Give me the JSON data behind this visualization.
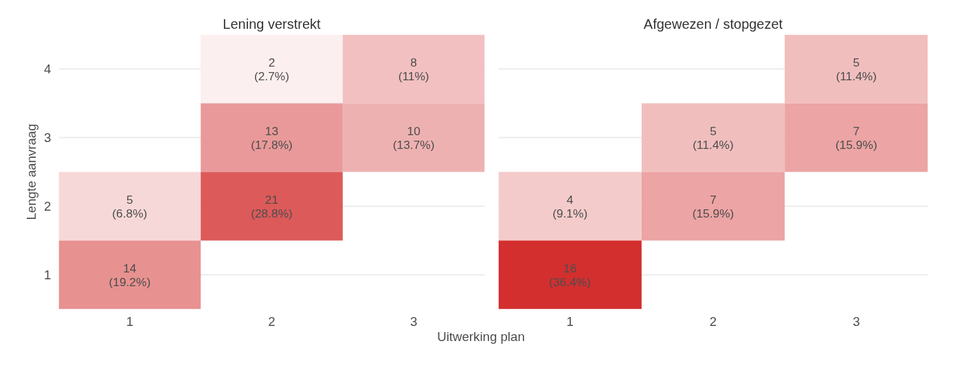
{
  "chart_data": [
    {
      "type": "heatmap",
      "title": "Lening verstrekt",
      "xlabel": "Uitwerking plan",
      "ylabel": "Lengte aanvraag",
      "grid": "y",
      "data_labels": true,
      "categories": [
        "1",
        "2",
        "3"
      ],
      "y_categories": [
        "4",
        "3",
        "2",
        "1"
      ],
      "cells": [
        [
          null,
          2,
          8
        ],
        [
          null,
          13,
          10
        ],
        [
          5,
          21,
          null
        ],
        [
          14,
          null,
          null
        ]
      ],
      "annotations": [
        "(2.7%)",
        "(11%)",
        "(17.8%)",
        "(13.7%)",
        "(6.8%)",
        "(28.8%)",
        "(19.2%)"
      ]
    },
    {
      "type": "heatmap",
      "title": "Afgewezen / stopgezet",
      "grid": "y",
      "data_labels": true,
      "tick_labels": "x",
      "categories": [
        "1",
        "2",
        "3"
      ],
      "y_categories": [
        "4",
        "3",
        "2",
        "1"
      ],
      "cells": [
        [
          null,
          null,
          5
        ],
        [
          null,
          5,
          7
        ],
        [
          4,
          7,
          null
        ],
        [
          16,
          null,
          null
        ]
      ],
      "annotations": [
        "(11.4%)",
        "(11.4%)",
        "(15.9%)",
        "(9.1%)",
        "(15.9%)",
        "(36.4%)"
      ]
    }
  ]
}
